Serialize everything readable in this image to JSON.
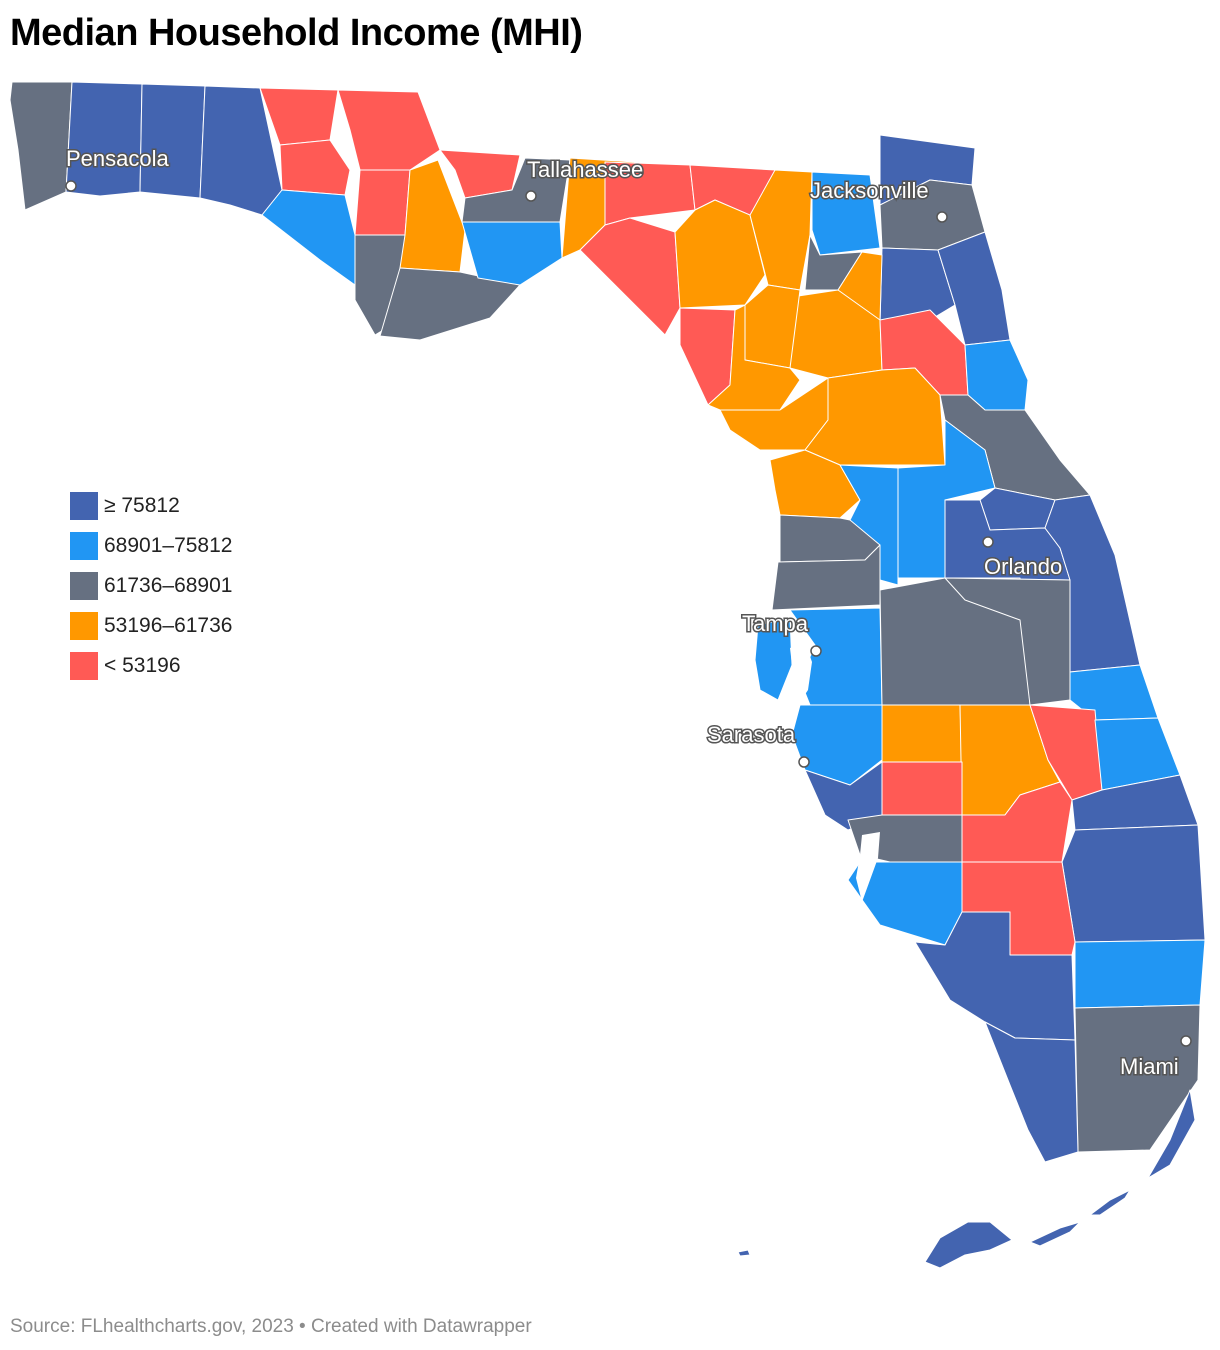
{
  "title": "Median Household Income (MHI)",
  "colors": {
    "very_high": "#4364b0",
    "high": "#2196f3",
    "mid": "#667081",
    "low": "#ff9800",
    "very_low": "#ff5a55"
  },
  "legend": [
    {
      "label": "≥ 75812",
      "color": "#4364b0"
    },
    {
      "label": "68901–75812",
      "color": "#2196f3"
    },
    {
      "label": "61736–68901",
      "color": "#667081"
    },
    {
      "label": "53196–61736",
      "color": "#ff9800"
    },
    {
      "label": "< 53196",
      "color": "#ff5a55"
    }
  ],
  "cities": [
    {
      "name": "Pensacola"
    },
    {
      "name": "Tallahassee"
    },
    {
      "name": "Jacksonville"
    },
    {
      "name": "Orlando"
    },
    {
      "name": "Tampa"
    },
    {
      "name": "Sarasota"
    },
    {
      "name": "Miami"
    }
  ],
  "footer": "Source: FLhealthcharts.gov, 2023 • Created with Datawrapper"
}
